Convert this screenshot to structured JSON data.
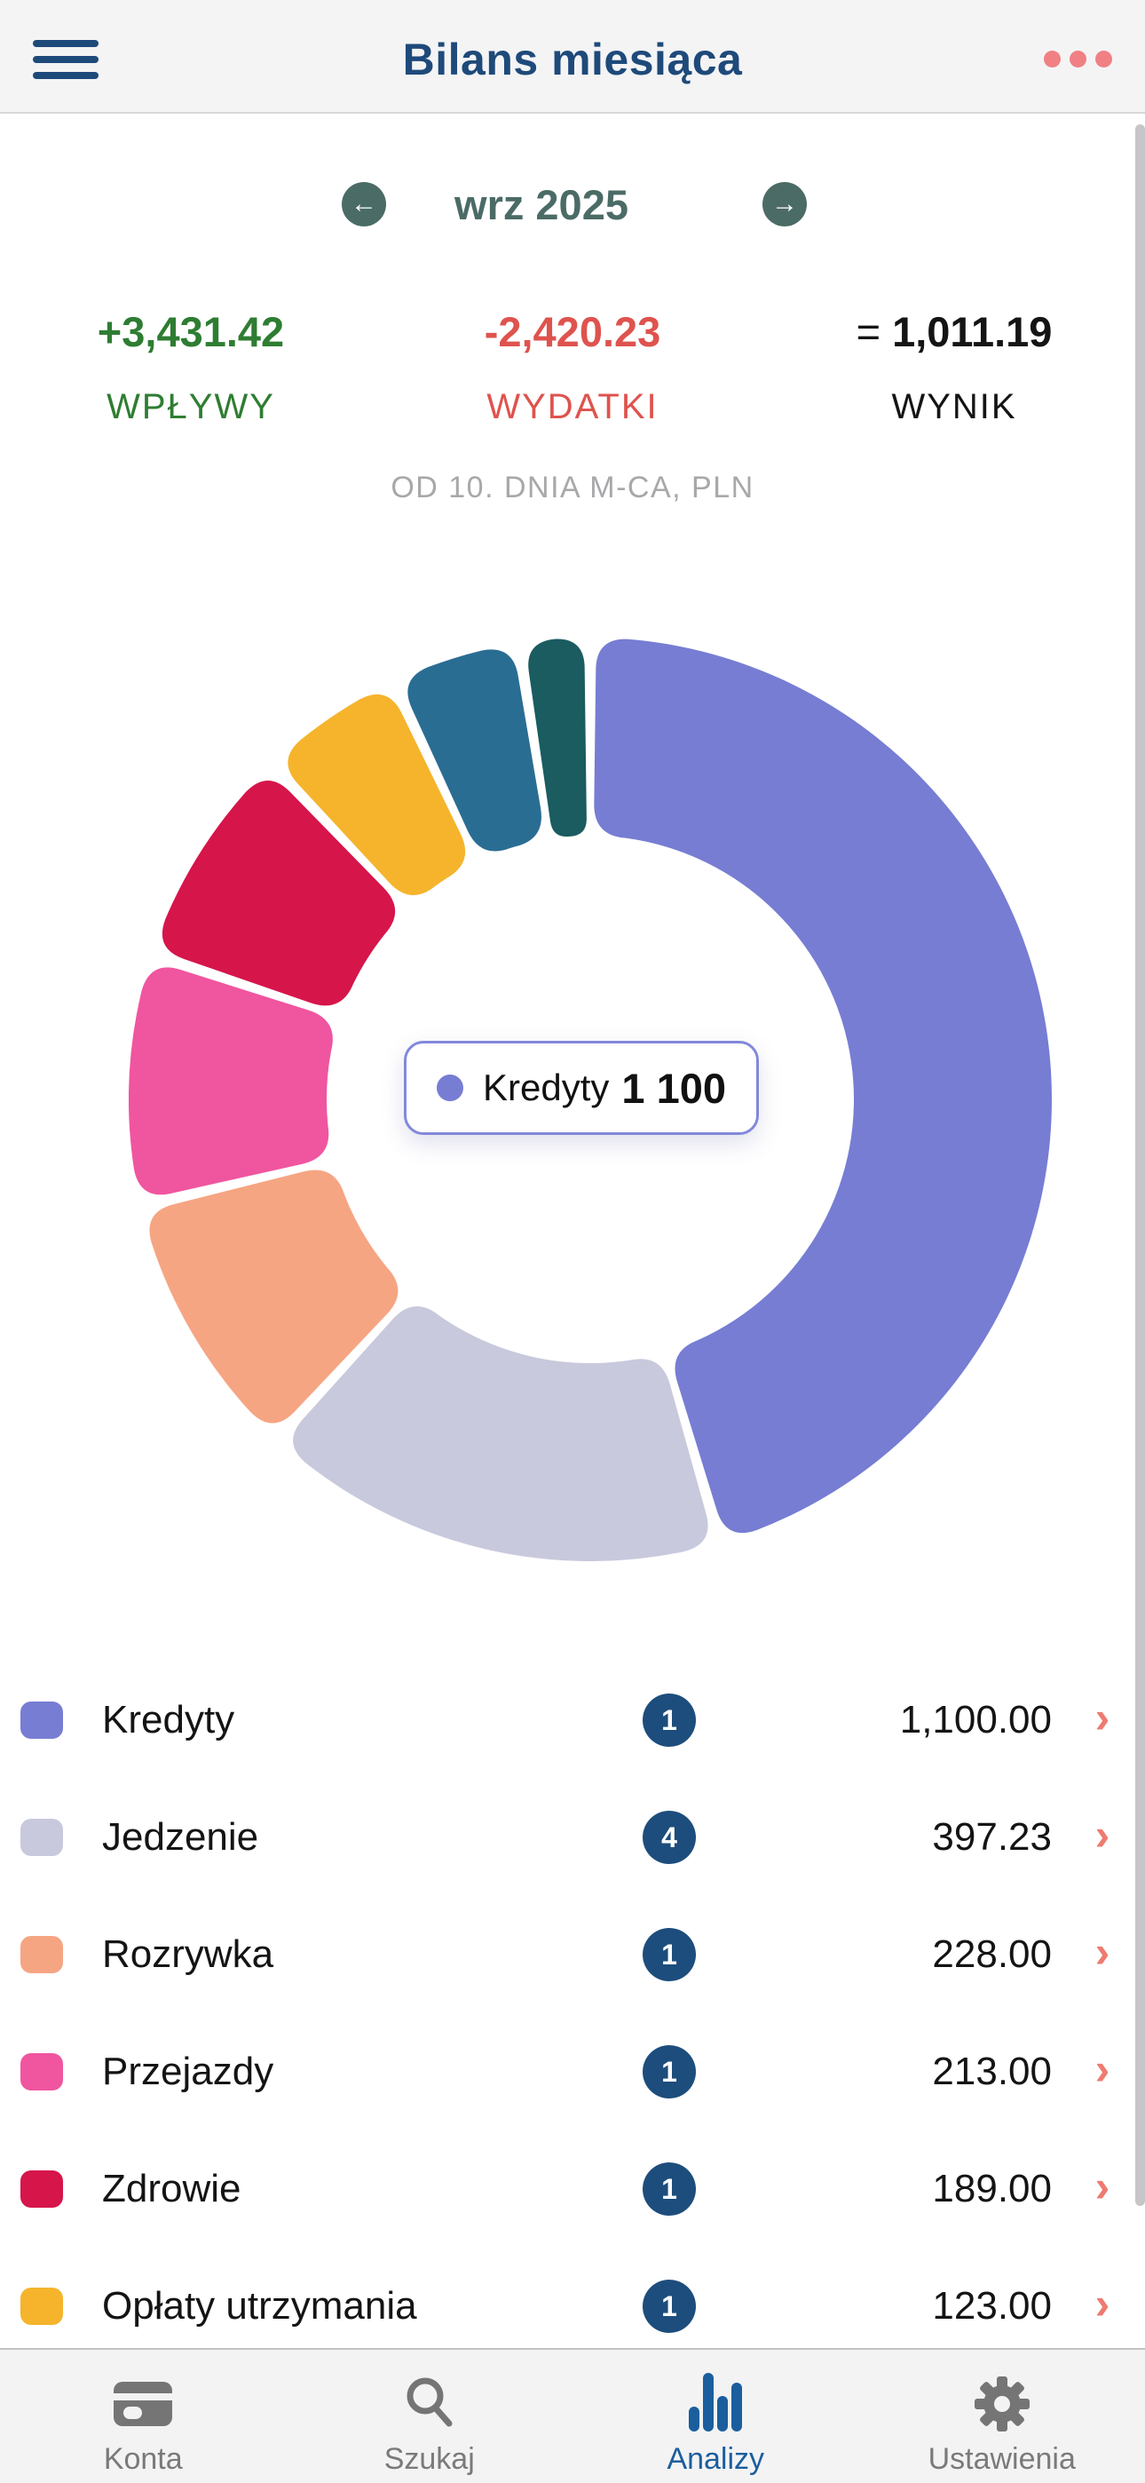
{
  "header": {
    "title": "Bilans miesiąca"
  },
  "month_nav": {
    "label": "wrz 2025",
    "prev": "←",
    "next": "→"
  },
  "summary": {
    "income": {
      "value": "+3,431.42",
      "label": "WPŁYWY"
    },
    "expenses": {
      "value": "-2,420.23",
      "label": "WYDATKI"
    },
    "result": {
      "prefix": "= ",
      "value": "1,011.19",
      "label": "WYNIK"
    }
  },
  "subtitle": "OD 10. DNIA M-CA, PLN",
  "tooltip": {
    "label": "Kredyty",
    "value": "1 100",
    "color": "#767dd3"
  },
  "chart_data": {
    "type": "pie",
    "subtype": "donut",
    "unit": "PLN",
    "total_expenses": 2420.23,
    "start_angle_deg": 0,
    "direction": "clockwise",
    "legend_position": "list-below",
    "segments": [
      {
        "name": "Kredyty",
        "value": 1100,
        "color": "#767dd3"
      },
      {
        "name": "Jedzenie",
        "value": 397.23,
        "color": "#c8c9dd"
      },
      {
        "name": "Rozrywka",
        "value": 228,
        "color": "#f6a583"
      },
      {
        "name": "Przejazdy",
        "value": 213,
        "color": "#f0559f"
      },
      {
        "name": "Zdrowie",
        "value": 189,
        "color": "#d6154b"
      },
      {
        "name": "Opłaty utrzymania",
        "value": 123,
        "color": "#f5b42c"
      },
      {
        "name": "",
        "value": 110,
        "color": "#2a6d93",
        "estimated": true,
        "note": "legend row scrolled out of view"
      },
      {
        "name": "",
        "value": 60,
        "color": "#1a5c60",
        "estimated": true,
        "note": "legend row scrolled out of view"
      }
    ],
    "center_tooltip": {
      "label": "Kredyty",
      "value": "1 100"
    }
  },
  "legend": {
    "rows": [
      {
        "name": "Kredyty",
        "count": "1",
        "amount": "1,100.00",
        "color": "#767dd3",
        "chevron": "›"
      },
      {
        "name": "Jedzenie",
        "count": "4",
        "amount": "397.23",
        "color": "#c8c9dd",
        "chevron": "›"
      },
      {
        "name": "Rozrywka",
        "count": "1",
        "amount": "228.00",
        "color": "#f6a583",
        "chevron": "›"
      },
      {
        "name": "Przejazdy",
        "count": "1",
        "amount": "213.00",
        "color": "#f0559f",
        "chevron": "›"
      },
      {
        "name": "Zdrowie",
        "count": "1",
        "amount": "189.00",
        "color": "#d6154b",
        "chevron": "›"
      },
      {
        "name": "Opłaty utrzymania",
        "count": "1",
        "amount": "123.00",
        "color": "#f5b42c",
        "chevron": "›"
      }
    ]
  },
  "tabs": {
    "items": [
      {
        "label": "Konta",
        "icon": "wallet-icon",
        "active": false
      },
      {
        "label": "Szukaj",
        "icon": "search-icon",
        "active": false
      },
      {
        "label": "Analizy",
        "icon": "bar-chart-icon",
        "active": true
      },
      {
        "label": "Ustawienia",
        "icon": "gear-icon",
        "active": false
      }
    ]
  },
  "colors": {
    "navy": "#1e4a7a",
    "coral": "#f08084",
    "slate_teal": "#4b6b66",
    "green": "#2e7d32",
    "red": "#df534e",
    "black": "#141414",
    "gray_subtitle": "#a8a8ab",
    "badge_navy": "#1d4d7c",
    "chevron": "#ee7b70",
    "tab_active": "#1b5e9d",
    "tab_inactive": "#7a7a7a",
    "tooltip_border": "#8288da",
    "header_bg": "#f4f4f5",
    "tabbar_bg": "#f3f3f4",
    "divider": "#d8d8da",
    "scrollbar": "#c6c6c8"
  }
}
